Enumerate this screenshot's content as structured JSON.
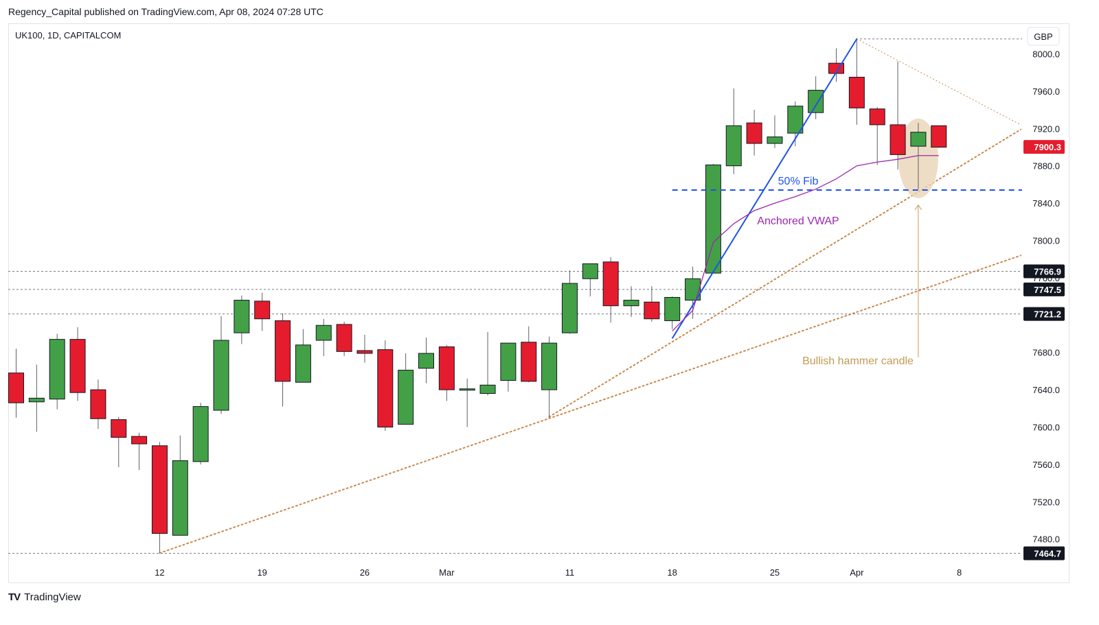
{
  "header": {
    "published": "Regency_Capital published on TradingView.com, Apr 08, 2024 07:28 UTC"
  },
  "symbol": {
    "label": "UK100, 1D, CAPITALCOM"
  },
  "footer": {
    "logo": "TV",
    "brand": "TradingView"
  },
  "colors": {
    "up": "#43a047",
    "down": "#e51c2d",
    "fib": "#1e53e5",
    "vwap": "#9c27b0",
    "trend": "#c8894b",
    "annotation": "#c49a55",
    "hammer_fill": "#e8d5b5"
  },
  "chart_data": {
    "type": "candlestick",
    "currency": "GBP",
    "ylim": [
      7440,
      8020
    ],
    "y_ticks": [
      7480,
      7520,
      7560,
      7600,
      7640,
      7680,
      7720,
      7760,
      7800,
      7840,
      7880,
      7920,
      7960,
      8000
    ],
    "y_tick_labels": [
      "7480.0",
      "7520.0",
      "7560.0",
      "7600.0",
      "7640.0",
      "7680.0",
      "7720.0",
      "7760.0",
      "7800.0",
      "7840.0",
      "7880.0",
      "7920.0",
      "7960.0",
      "8000.0"
    ],
    "x_ticks": [
      {
        "label": "12",
        "index": 7
      },
      {
        "label": "19",
        "index": 12
      },
      {
        "label": "26",
        "index": 17
      },
      {
        "label": "Mar",
        "index": 21
      },
      {
        "label": "11",
        "index": 27
      },
      {
        "label": "18",
        "index": 32
      },
      {
        "label": "25",
        "index": 37
      },
      {
        "label": "Apr",
        "index": 41
      },
      {
        "label": "8",
        "index": 46
      }
    ],
    "candles": [
      {
        "o": 7658,
        "h": 7684,
        "l": 7610,
        "c": 7626
      },
      {
        "o": 7627,
        "h": 7667,
        "l": 7595,
        "c": 7631
      },
      {
        "o": 7630,
        "h": 7700,
        "l": 7619,
        "c": 7694
      },
      {
        "o": 7694,
        "h": 7707,
        "l": 7628,
        "c": 7637
      },
      {
        "o": 7640,
        "h": 7651,
        "l": 7598,
        "c": 7609
      },
      {
        "o": 7608,
        "h": 7611,
        "l": 7557,
        "c": 7589
      },
      {
        "o": 7590,
        "h": 7594,
        "l": 7554,
        "c": 7582
      },
      {
        "o": 7580,
        "h": 7584,
        "l": 7465,
        "c": 7486
      },
      {
        "o": 7484,
        "h": 7591,
        "l": 7484,
        "c": 7564
      },
      {
        "o": 7563,
        "h": 7626,
        "l": 7560,
        "c": 7622
      },
      {
        "o": 7618,
        "h": 7719,
        "l": 7614,
        "c": 7693
      },
      {
        "o": 7701,
        "h": 7741,
        "l": 7689,
        "c": 7736
      },
      {
        "o": 7735,
        "h": 7744,
        "l": 7703,
        "c": 7716
      },
      {
        "o": 7714,
        "h": 7722,
        "l": 7622,
        "c": 7649
      },
      {
        "o": 7648,
        "h": 7705,
        "l": 7648,
        "c": 7688
      },
      {
        "o": 7693,
        "h": 7716,
        "l": 7676,
        "c": 7709
      },
      {
        "o": 7710,
        "h": 7713,
        "l": 7676,
        "c": 7681
      },
      {
        "o": 7682,
        "h": 7699,
        "l": 7669,
        "c": 7679
      },
      {
        "o": 7683,
        "h": 7693,
        "l": 7596,
        "c": 7600
      },
      {
        "o": 7603,
        "h": 7679,
        "l": 7603,
        "c": 7661
      },
      {
        "o": 7663,
        "h": 7696,
        "l": 7647,
        "c": 7679
      },
      {
        "o": 7686,
        "h": 7688,
        "l": 7628,
        "c": 7640
      },
      {
        "o": 7640,
        "h": 7652,
        "l": 7600,
        "c": 7641
      },
      {
        "o": 7636,
        "h": 7702,
        "l": 7634,
        "c": 7645
      },
      {
        "o": 7650,
        "h": 7690,
        "l": 7638,
        "c": 7690
      },
      {
        "o": 7691,
        "h": 7708,
        "l": 7648,
        "c": 7649
      },
      {
        "o": 7640,
        "h": 7697,
        "l": 7610,
        "c": 7690
      },
      {
        "o": 7701,
        "h": 7768,
        "l": 7700,
        "c": 7754
      },
      {
        "o": 7759,
        "h": 7774,
        "l": 7740,
        "c": 7775
      },
      {
        "o": 7777,
        "h": 7782,
        "l": 7712,
        "c": 7730
      },
      {
        "o": 7730,
        "h": 7751,
        "l": 7718,
        "c": 7736
      },
      {
        "o": 7734,
        "h": 7751,
        "l": 7713,
        "c": 7716
      },
      {
        "o": 7714,
        "h": 7740,
        "l": 7705,
        "c": 7739
      },
      {
        "o": 7736,
        "h": 7772,
        "l": 7716,
        "c": 7759
      },
      {
        "o": 7765,
        "h": 7882,
        "l": 7765,
        "c": 7881
      },
      {
        "o": 7880,
        "h": 7963,
        "l": 7871,
        "c": 7923
      },
      {
        "o": 7926,
        "h": 7940,
        "l": 7891,
        "c": 7904
      },
      {
        "o": 7904,
        "h": 7934,
        "l": 7899,
        "c": 7911
      },
      {
        "o": 7915,
        "h": 7949,
        "l": 7901,
        "c": 7944
      },
      {
        "o": 7937,
        "h": 7976,
        "l": 7930,
        "c": 7961
      },
      {
        "o": 7990,
        "h": 8006,
        "l": 7970,
        "c": 7979
      },
      {
        "o": 7975,
        "h": 8017,
        "l": 7924,
        "c": 7942
      },
      {
        "o": 7941,
        "h": 7943,
        "l": 7881,
        "c": 7924
      },
      {
        "o": 7924,
        "h": 7992,
        "l": 7876,
        "c": 7892
      },
      {
        "o": 7901,
        "h": 7926,
        "l": 7855,
        "c": 7916
      },
      {
        "o": 7923,
        "h": 7923,
        "l": 7899,
        "c": 7900
      }
    ],
    "price_labels": [
      {
        "label": "7900.3",
        "value": 7900.3,
        "color": "#e51c2d",
        "text_color": "#ffffff"
      },
      {
        "label": "7766.9",
        "value": 7766.9,
        "color": "#131722",
        "text_color": "#ffffff"
      },
      {
        "label": "7747.5",
        "value": 7747.5,
        "color": "#131722",
        "text_color": "#ffffff"
      },
      {
        "label": "7721.2",
        "value": 7721.2,
        "color": "#131722",
        "text_color": "#ffffff"
      },
      {
        "label": "7464.7",
        "value": 7464.7,
        "color": "#131722",
        "text_color": "#ffffff"
      }
    ],
    "horizontal_levels": [
      8016,
      7766.9,
      7747.5,
      7721.2,
      7464.7
    ],
    "fib_level": {
      "value": 7854,
      "label": "50% Fib",
      "from_index": 32,
      "to_index": 49
    },
    "fib_line": [
      {
        "index": 32,
        "value": 7695
      },
      {
        "index": 41,
        "value": 8016
      }
    ],
    "vwap": {
      "label": "Anchored VWAP",
      "points": [
        {
          "index": 32,
          "value": 7703
        },
        {
          "index": 33,
          "value": 7725
        },
        {
          "index": 34,
          "value": 7798
        },
        {
          "index": 35,
          "value": 7818
        },
        {
          "index": 36,
          "value": 7832
        },
        {
          "index": 37,
          "value": 7840
        },
        {
          "index": 38,
          "value": 7847
        },
        {
          "index": 39,
          "value": 7855
        },
        {
          "index": 40,
          "value": 7866
        },
        {
          "index": 41,
          "value": 7880
        },
        {
          "index": 42,
          "value": 7884
        },
        {
          "index": 43,
          "value": 7887
        },
        {
          "index": 44,
          "value": 7891
        },
        {
          "index": 45,
          "value": 7891
        }
      ]
    },
    "trendlines": [
      {
        "from": {
          "index": 7,
          "value": 7465
        },
        "to": {
          "index": 49,
          "value": 7784
        }
      },
      {
        "from": {
          "index": 26,
          "value": 7611
        },
        "to": {
          "index": 49,
          "value": 7919
        }
      }
    ],
    "fan_line": {
      "from": {
        "index": 41,
        "value": 8016
      },
      "to": {
        "index": 49,
        "value": 7924
      }
    },
    "annotation": {
      "label": "Bullish hammer candle",
      "index": 44,
      "value": 7660,
      "arrow_to_value": 7843
    }
  }
}
